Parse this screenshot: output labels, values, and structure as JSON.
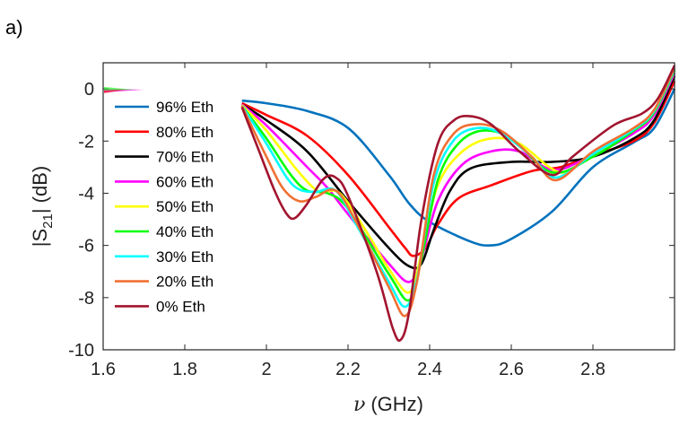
{
  "panel_label": "a)",
  "chart_data": {
    "type": "line",
    "xlabel_symbol": "ν",
    "xlabel_unit": "(GHz)",
    "ylabel_main": "|S",
    "ylabel_sub": "21",
    "ylabel_unit": "| (dB)",
    "xlim": [
      1.6,
      3.0
    ],
    "ylim": [
      -10,
      1
    ],
    "xticks": [
      1.6,
      1.8,
      2.0,
      2.2,
      2.4,
      2.6,
      2.8
    ],
    "xtick_labels": [
      "1.6",
      "1.8",
      "2",
      "2.2",
      "2.4",
      "2.6",
      "2.8"
    ],
    "yticks": [
      0,
      -2,
      -4,
      -6,
      -8,
      -10
    ],
    "ytick_labels": [
      "0",
      "-2",
      "-4",
      "-6",
      "-8",
      "-10"
    ],
    "grid": false,
    "legend_position": "top-left",
    "series": [
      {
        "name": "96% Eth",
        "color": "#0072BD",
        "points": [
          [
            1.94,
            -0.45
          ],
          [
            2.0,
            -0.55
          ],
          [
            2.1,
            -0.85
          ],
          [
            2.2,
            -1.5
          ],
          [
            2.3,
            -3.3
          ],
          [
            2.35,
            -4.4
          ],
          [
            2.4,
            -5.1
          ],
          [
            2.5,
            -5.85
          ],
          [
            2.55,
            -6.0
          ],
          [
            2.6,
            -5.75
          ],
          [
            2.7,
            -4.7
          ],
          [
            2.8,
            -3.0
          ],
          [
            2.9,
            -2.05
          ],
          [
            2.95,
            -1.5
          ],
          [
            3.0,
            0.0
          ]
        ]
      },
      {
        "name": "80% Eth",
        "color": "#FF0000",
        "points": [
          [
            1.94,
            -0.55
          ],
          [
            2.0,
            -1.0
          ],
          [
            2.1,
            -1.8
          ],
          [
            2.2,
            -3.3
          ],
          [
            2.3,
            -5.3
          ],
          [
            2.34,
            -6.1
          ],
          [
            2.36,
            -6.4
          ],
          [
            2.39,
            -6.1
          ],
          [
            2.42,
            -5.2
          ],
          [
            2.47,
            -4.2
          ],
          [
            2.55,
            -3.7
          ],
          [
            2.65,
            -3.15
          ],
          [
            2.72,
            -3.0
          ],
          [
            2.8,
            -2.55
          ],
          [
            2.9,
            -2.0
          ],
          [
            2.95,
            -1.3
          ],
          [
            3.0,
            0.3
          ]
        ]
      },
      {
        "name": "70% Eth",
        "color": "#000000",
        "points": [
          [
            1.94,
            -0.6
          ],
          [
            2.0,
            -1.2
          ],
          [
            2.1,
            -2.4
          ],
          [
            2.2,
            -4.3
          ],
          [
            2.3,
            -6.1
          ],
          [
            2.35,
            -6.8
          ],
          [
            2.38,
            -6.7
          ],
          [
            2.41,
            -5.4
          ],
          [
            2.45,
            -3.9
          ],
          [
            2.5,
            -3.05
          ],
          [
            2.6,
            -2.8
          ],
          [
            2.7,
            -2.8
          ],
          [
            2.8,
            -2.6
          ],
          [
            2.9,
            -1.9
          ],
          [
            2.95,
            -1.2
          ],
          [
            3.0,
            0.5
          ]
        ]
      },
      {
        "name": "60% Eth",
        "color": "#FF00FF",
        "points": [
          [
            1.94,
            -0.6
          ],
          [
            2.0,
            -1.4
          ],
          [
            2.1,
            -3.0
          ],
          [
            2.15,
            -3.8
          ],
          [
            2.2,
            -4.8
          ],
          [
            2.3,
            -6.7
          ],
          [
            2.35,
            -7.4
          ],
          [
            2.38,
            -6.5
          ],
          [
            2.42,
            -4.3
          ],
          [
            2.48,
            -2.9
          ],
          [
            2.55,
            -2.4
          ],
          [
            2.62,
            -2.4
          ],
          [
            2.7,
            -3.1
          ],
          [
            2.78,
            -2.7
          ],
          [
            2.9,
            -1.7
          ],
          [
            2.95,
            -1.0
          ],
          [
            3.0,
            0.6
          ]
        ]
      },
      {
        "name": "50% Eth",
        "color": "#FFFF00",
        "points": [
          [
            1.94,
            -0.62
          ],
          [
            2.0,
            -1.6
          ],
          [
            2.08,
            -3.2
          ],
          [
            2.13,
            -3.95
          ],
          [
            2.18,
            -4.0
          ],
          [
            2.25,
            -5.6
          ],
          [
            2.3,
            -6.9
          ],
          [
            2.35,
            -7.8
          ],
          [
            2.38,
            -6.3
          ],
          [
            2.42,
            -3.7
          ],
          [
            2.48,
            -2.4
          ],
          [
            2.55,
            -1.9
          ],
          [
            2.62,
            -2.1
          ],
          [
            2.72,
            -3.2
          ],
          [
            2.8,
            -2.5
          ],
          [
            2.9,
            -1.6
          ],
          [
            2.95,
            -0.9
          ],
          [
            3.0,
            0.7
          ]
        ]
      },
      {
        "name": "40% Eth",
        "color": "#00FF00",
        "points": [
          [
            1.94,
            -0.65
          ],
          [
            2.0,
            -1.9
          ],
          [
            2.06,
            -3.3
          ],
          [
            2.1,
            -3.9
          ],
          [
            2.15,
            -4.0
          ],
          [
            2.2,
            -4.6
          ],
          [
            2.3,
            -7.1
          ],
          [
            2.35,
            -8.1
          ],
          [
            2.38,
            -6.5
          ],
          [
            2.42,
            -3.5
          ],
          [
            2.47,
            -2.1
          ],
          [
            2.53,
            -1.6
          ],
          [
            2.6,
            -1.9
          ],
          [
            2.7,
            -3.2
          ],
          [
            2.8,
            -2.6
          ],
          [
            2.9,
            -1.6
          ],
          [
            2.95,
            -0.9
          ],
          [
            3.0,
            0.7
          ]
        ]
      },
      {
        "name": "30% Eth",
        "color": "#00FFFF",
        "points": [
          [
            1.94,
            -0.65
          ],
          [
            2.0,
            -2.1
          ],
          [
            2.05,
            -3.4
          ],
          [
            2.08,
            -3.85
          ],
          [
            2.12,
            -3.95
          ],
          [
            2.17,
            -3.9
          ],
          [
            2.22,
            -5.2
          ],
          [
            2.3,
            -7.4
          ],
          [
            2.34,
            -8.35
          ],
          [
            2.37,
            -7.2
          ],
          [
            2.41,
            -3.6
          ],
          [
            2.46,
            -1.95
          ],
          [
            2.52,
            -1.5
          ],
          [
            2.58,
            -1.75
          ],
          [
            2.65,
            -2.6
          ],
          [
            2.71,
            -3.4
          ],
          [
            2.8,
            -2.5
          ],
          [
            2.9,
            -1.55
          ],
          [
            2.95,
            -0.85
          ],
          [
            3.0,
            0.75
          ]
        ]
      },
      {
        "name": "20% Eth",
        "color": "#F07033",
        "points": [
          [
            1.94,
            -0.65
          ],
          [
            2.0,
            -2.6
          ],
          [
            2.04,
            -3.8
          ],
          [
            2.08,
            -4.3
          ],
          [
            2.12,
            -4.15
          ],
          [
            2.17,
            -3.9
          ],
          [
            2.22,
            -5.1
          ],
          [
            2.3,
            -7.6
          ],
          [
            2.34,
            -8.7
          ],
          [
            2.37,
            -7.3
          ],
          [
            2.41,
            -3.3
          ],
          [
            2.46,
            -1.7
          ],
          [
            2.52,
            -1.35
          ],
          [
            2.58,
            -1.65
          ],
          [
            2.65,
            -2.6
          ],
          [
            2.71,
            -3.5
          ],
          [
            2.8,
            -2.4
          ],
          [
            2.9,
            -1.5
          ],
          [
            2.95,
            -0.8
          ],
          [
            3.0,
            0.8
          ]
        ]
      },
      {
        "name": "0% Eth",
        "color": "#A2142F",
        "points": [
          [
            1.94,
            -0.7
          ],
          [
            1.98,
            -2.3
          ],
          [
            2.02,
            -3.9
          ],
          [
            2.05,
            -4.8
          ],
          [
            2.07,
            -4.95
          ],
          [
            2.1,
            -4.4
          ],
          [
            2.14,
            -3.45
          ],
          [
            2.17,
            -3.4
          ],
          [
            2.2,
            -4.1
          ],
          [
            2.27,
            -7.0
          ],
          [
            2.31,
            -9.2
          ],
          [
            2.33,
            -9.6
          ],
          [
            2.35,
            -8.5
          ],
          [
            2.38,
            -5.0
          ],
          [
            2.42,
            -2.1
          ],
          [
            2.46,
            -1.2
          ],
          [
            2.5,
            -1.05
          ],
          [
            2.55,
            -1.35
          ],
          [
            2.62,
            -2.4
          ],
          [
            2.7,
            -3.3
          ],
          [
            2.75,
            -2.6
          ],
          [
            2.85,
            -1.4
          ],
          [
            2.92,
            -0.95
          ],
          [
            2.96,
            -0.35
          ],
          [
            3.0,
            0.9
          ]
        ]
      }
    ]
  }
}
